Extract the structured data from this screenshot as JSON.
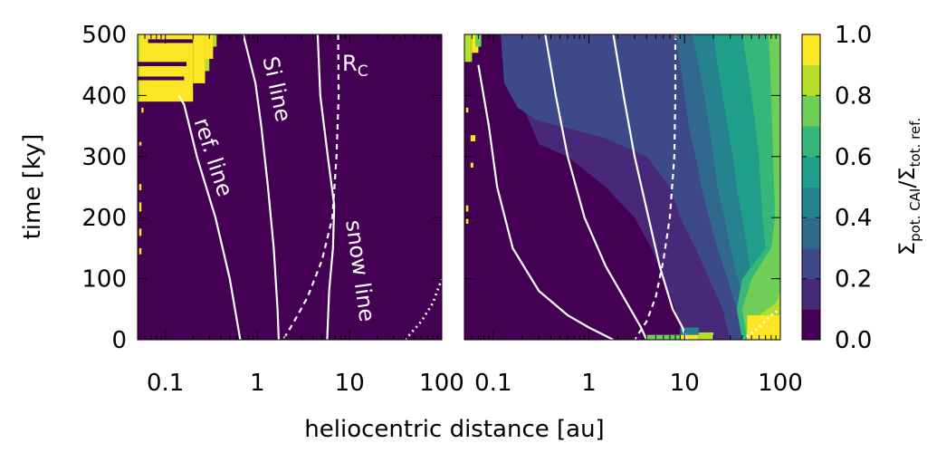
{
  "chart_data": {
    "type": "heatmap",
    "xlabel": "heliocentric distance [au]",
    "ylabel": "time [ky]",
    "x_scale": "log",
    "xlim": [
      0.05,
      100
    ],
    "ylim": [
      0,
      500
    ],
    "x_ticks": [
      "0.1",
      "1",
      "10",
      "100"
    ],
    "y_ticks": [
      "0",
      "100",
      "200",
      "300",
      "400",
      "500"
    ],
    "colorbar": {
      "label_main": "Σ",
      "label_sub1": "pot. CAI",
      "label_sep": "/Σ",
      "label_sub2": "tot. ref.",
      "range": [
        0,
        1
      ],
      "ticks": [
        "0.0",
        "0.2",
        "0.4",
        "0.6",
        "0.8",
        "1.0"
      ],
      "colors": [
        "#440154",
        "#482878",
        "#3e4989",
        "#31688e",
        "#26828e",
        "#1f9e89",
        "#35b779",
        "#6ece58",
        "#b5de2b",
        "#fde725"
      ]
    },
    "panels": [
      {
        "name": "left",
        "background_value": 0.0,
        "lines": [
          {
            "label": "ref. line",
            "style": "solid",
            "points": [
              [
                0.14,
                400
              ],
              [
                0.16,
                385
              ],
              [
                0.22,
                300
              ],
              [
                0.35,
                200
              ],
              [
                0.5,
                100
              ],
              [
                0.65,
                0
              ]
            ]
          },
          {
            "label": "Si line",
            "style": "solid",
            "points": [
              [
                0.7,
                500
              ],
              [
                0.95,
                420
              ],
              [
                1.1,
                350
              ],
              [
                1.3,
                250
              ],
              [
                1.5,
                150
              ],
              [
                1.65,
                50
              ],
              [
                1.7,
                0
              ]
            ]
          },
          {
            "label": "R",
            "label_sub": "C",
            "style": "dashed",
            "points": [
              [
                7.5,
                500
              ],
              [
                7.6,
                400
              ],
              [
                7.2,
                300
              ],
              [
                6.5,
                200
              ],
              [
                5.0,
                130
              ],
              [
                3.5,
                70
              ],
              [
                2.5,
                30
              ],
              [
                1.9,
                0
              ]
            ]
          },
          {
            "label": "snow line",
            "style": "solid",
            "points": [
              [
                4.5,
                500
              ],
              [
                4.8,
                400
              ],
              [
                5.8,
                300
              ],
              [
                6.8,
                220
              ],
              [
                6.6,
                150
              ],
              [
                6.0,
                80
              ],
              [
                5.7,
                0
              ]
            ]
          },
          {
            "label": "",
            "style": "dotted",
            "points": [
              [
                40,
                0
              ],
              [
                60,
                30
              ],
              [
                80,
                60
              ],
              [
                100,
                100
              ]
            ]
          }
        ],
        "cells": [
          {
            "x0": 0.05,
            "x1": 0.2,
            "y0": 390,
            "y1": 500,
            "value": 1.0
          },
          {
            "x0": 0.2,
            "x1": 0.27,
            "y0": 420,
            "y1": 500,
            "value": 1.0
          },
          {
            "x0": 0.27,
            "x1": 0.33,
            "y0": 460,
            "y1": 500,
            "value": 1.0
          },
          {
            "x0": 0.33,
            "x1": 0.36,
            "y0": 480,
            "y1": 500,
            "value": 0.85
          },
          {
            "x0": 0.27,
            "x1": 0.3,
            "y0": 440,
            "y1": 460,
            "value": 0.85
          },
          {
            "x0": 0.05,
            "x1": 0.053,
            "y0": 390,
            "y1": 500,
            "value": 0.85
          },
          {
            "x0": 0.065,
            "x1": 0.2,
            "y0": 486,
            "y1": 492,
            "value": 0.0
          },
          {
            "x0": 0.05,
            "x1": 0.17,
            "y0": 448,
            "y1": 455,
            "value": 0.0
          },
          {
            "x0": 0.05,
            "x1": 0.16,
            "y0": 425,
            "y1": 431,
            "value": 0.0
          },
          {
            "x0": 0.2,
            "x1": 0.5,
            "y0": 410,
            "y1": 418,
            "value": 0.0
          },
          {
            "x0": 0.055,
            "x1": 0.058,
            "y0": 372,
            "y1": 380,
            "value": 1.0
          },
          {
            "x0": 0.052,
            "x1": 0.055,
            "y0": 318,
            "y1": 324,
            "value": 1.0
          },
          {
            "x0": 0.052,
            "x1": 0.055,
            "y0": 245,
            "y1": 255,
            "value": 1.0
          },
          {
            "x0": 0.052,
            "x1": 0.055,
            "y0": 210,
            "y1": 225,
            "value": 1.0
          },
          {
            "x0": 0.052,
            "x1": 0.055,
            "y0": 170,
            "y1": 182,
            "value": 1.0
          },
          {
            "x0": 0.052,
            "x1": 0.055,
            "y0": 140,
            "y1": 150,
            "value": 1.0
          }
        ]
      },
      {
        "name": "right",
        "background_value": 0.0,
        "lines": [
          {
            "label": "",
            "style": "solid",
            "points": [
              [
                0.07,
                450
              ],
              [
                0.09,
                350
              ],
              [
                0.11,
                250
              ],
              [
                0.16,
                150
              ],
              [
                0.3,
                80
              ],
              [
                0.6,
                40
              ],
              [
                1.0,
                20
              ],
              [
                1.8,
                0
              ]
            ]
          },
          {
            "label": "",
            "style": "solid",
            "points": [
              [
                0.35,
                500
              ],
              [
                0.45,
                400
              ],
              [
                0.6,
                300
              ],
              [
                0.9,
                200
              ],
              [
                1.5,
                120
              ],
              [
                2.5,
                60
              ],
              [
                3.5,
                20
              ],
              [
                4.0,
                0
              ]
            ]
          },
          {
            "label": "",
            "style": "solid",
            "points": [
              [
                1.8,
                500
              ],
              [
                2.3,
                400
              ],
              [
                3.0,
                300
              ],
              [
                4.2,
                200
              ],
              [
                5.5,
                120
              ],
              [
                7.5,
                50
              ],
              [
                9.5,
                20
              ],
              [
                10.5,
                0
              ]
            ]
          },
          {
            "label": "",
            "style": "dashed",
            "points": [
              [
                8.0,
                500
              ],
              [
                8.0,
                400
              ],
              [
                7.8,
                300
              ],
              [
                7.0,
                200
              ],
              [
                6.0,
                130
              ],
              [
                5.0,
                70
              ],
              [
                4.0,
                30
              ],
              [
                3.0,
                0
              ]
            ]
          },
          {
            "label": "",
            "style": "dotted",
            "points": [
              [
                40,
                0
              ],
              [
                60,
                20
              ],
              [
                80,
                40
              ],
              [
                100,
                50
              ]
            ]
          }
        ],
        "regions": [
          {
            "value": 0.2,
            "y_bands": [
              [
                0,
                500
              ]
            ],
            "boundary": [
              [
                500,
                0.15
              ],
              [
                400,
                0.18
              ],
              [
                350,
                0.25
              ],
              [
                320,
                0.3
              ],
              [
                300,
                0.6
              ],
              [
                250,
                1.5
              ],
              [
                200,
                3.0
              ],
              [
                150,
                4.5
              ],
              [
                100,
                6.0
              ],
              [
                50,
                8.0
              ],
              [
                0,
                10
              ]
            ]
          },
          {
            "value": 0.3,
            "boundary": [
              [
                500,
                0.12
              ],
              [
                420,
                0.13
              ],
              [
                380,
                0.18
              ],
              [
                360,
                0.28
              ],
              [
                330,
                1.5
              ],
              [
                300,
                4.0
              ],
              [
                250,
                7.0
              ],
              [
                200,
                9.0
              ],
              [
                150,
                13.0
              ],
              [
                100,
                18.0
              ],
              [
                50,
                25.0
              ],
              [
                0,
                30.0
              ]
            ]
          },
          {
            "value": 0.4,
            "boundary": [
              [
                500,
                8.0
              ],
              [
                450,
                9.0
              ],
              [
                400,
                10.0
              ],
              [
                350,
                11.0
              ],
              [
                300,
                13.0
              ],
              [
                250,
                15.0
              ],
              [
                200,
                18.0
              ],
              [
                150,
                22.0
              ],
              [
                100,
                28.0
              ],
              [
                50,
                35.0
              ],
              [
                0,
                40.0
              ]
            ]
          },
          {
            "value": 0.5,
            "boundary": [
              [
                500,
                12.0
              ],
              [
                450,
                14.0
              ],
              [
                400,
                16.0
              ],
              [
                350,
                18.0
              ],
              [
                300,
                20.0
              ],
              [
                250,
                22.0
              ],
              [
                200,
                26.0
              ],
              [
                150,
                30.0
              ],
              [
                100,
                36.0
              ],
              [
                50,
                45.0
              ],
              [
                0,
                55.0
              ]
            ]
          },
          {
            "value": 0.6,
            "boundary": [
              [
                500,
                20.0
              ],
              [
                450,
                22.0
              ],
              [
                400,
                25.0
              ],
              [
                350,
                28.0
              ],
              [
                300,
                32.0
              ],
              [
                250,
                35.0
              ],
              [
                200,
                40.0
              ],
              [
                150,
                45.0
              ],
              [
                100,
                50.0
              ],
              [
                50,
                60.0
              ],
              [
                0,
                70.0
              ]
            ]
          },
          {
            "value": 0.7,
            "boundary": [
              [
                500,
                40.0
              ],
              [
                450,
                45.0
              ],
              [
                400,
                50.0
              ],
              [
                350,
                55.0
              ],
              [
                300,
                60.0
              ],
              [
                250,
                62.0
              ],
              [
                200,
                65.0
              ],
              [
                150,
                70.0
              ],
              [
                100,
                40.0
              ],
              [
                50,
                35.0
              ],
              [
                0,
                40.0
              ]
            ]
          },
          {
            "value": 0.8,
            "boundary": [
              [
                500,
                75.0
              ],
              [
                450,
                78.0
              ],
              [
                400,
                80.0
              ],
              [
                350,
                82.0
              ],
              [
                300,
                84.0
              ],
              [
                250,
                86.0
              ],
              [
                200,
                88.0
              ],
              [
                150,
                80.0
              ],
              [
                100,
                50.0
              ],
              [
                50,
                40.0
              ],
              [
                0,
                45.0
              ]
            ]
          },
          {
            "value": 0.9,
            "boundary": [
              [
                80,
                100.0
              ],
              [
                60,
                90.0
              ],
              [
                40,
                60.0
              ],
              [
                20,
                45.0
              ],
              [
                0,
                50.0
              ]
            ]
          }
        ],
        "cells": [
          {
            "x0": 0.05,
            "x1": 0.06,
            "y0": 455,
            "y1": 500,
            "value": 0.9
          },
          {
            "x0": 0.06,
            "x1": 0.07,
            "y0": 470,
            "y1": 500,
            "value": 1.0
          },
          {
            "x0": 0.065,
            "x1": 0.075,
            "y0": 480,
            "y1": 500,
            "value": 0.75
          },
          {
            "x0": 0.052,
            "x1": 0.055,
            "y0": 372,
            "y1": 380,
            "value": 1.0
          },
          {
            "x0": 0.058,
            "x1": 0.065,
            "y0": 325,
            "y1": 335,
            "value": 1.0
          },
          {
            "x0": 0.058,
            "x1": 0.062,
            "y0": 282,
            "y1": 290,
            "value": 1.0
          },
          {
            "x0": 0.052,
            "x1": 0.055,
            "y0": 210,
            "y1": 220,
            "value": 1.0
          },
          {
            "x0": 0.052,
            "x1": 0.055,
            "y0": 190,
            "y1": 198,
            "value": 1.0
          },
          {
            "x0": 9.0,
            "x1": 14.0,
            "y0": 0,
            "y1": 8,
            "value": 1.0
          },
          {
            "x0": 4.0,
            "x1": 9.0,
            "y0": 0,
            "y1": 8,
            "value": 0.75
          },
          {
            "x0": 14.0,
            "x1": 20.0,
            "y0": 0,
            "y1": 12,
            "value": 0.85
          },
          {
            "x0": 9.0,
            "x1": 14.0,
            "y0": 8,
            "y1": 20,
            "value": 0.5
          },
          {
            "x0": 45.0,
            "x1": 100.0,
            "y0": 0,
            "y1": 40,
            "value": 0.95
          }
        ]
      }
    ]
  }
}
